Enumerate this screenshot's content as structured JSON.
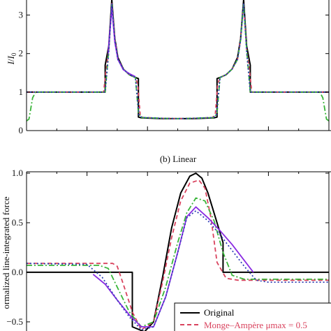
{
  "chart_data": [
    {
      "type": "line",
      "panel": "top",
      "title": "",
      "ylabel_main": "I",
      "ylabel_sub": "0",
      "xlim": [
        0,
        1
      ],
      "ylim": [
        0,
        3.5
      ],
      "yticks": [
        0,
        1,
        2,
        3
      ],
      "ytick_labels": [
        "0",
        "1",
        "2",
        "3"
      ],
      "series": [
        {
          "color": "#000000",
          "dash": "solid",
          "x": [
            0,
            0.26,
            0.26,
            0.272,
            0.282,
            0.292,
            0.302,
            0.32,
            0.34,
            0.36,
            0.37,
            0.37,
            0.38,
            0.45,
            0.5,
            0.55,
            0.62,
            0.63,
            0.63,
            0.64,
            0.66,
            0.68,
            0.698,
            0.708,
            0.718,
            0.728,
            0.74,
            0.74,
            1.0
          ],
          "y": [
            1.0,
            1.0,
            1.7,
            2.2,
            3.4,
            2.4,
            1.9,
            1.6,
            1.45,
            1.38,
            1.35,
            0.35,
            0.33,
            0.31,
            0.31,
            0.31,
            0.33,
            0.35,
            1.35,
            1.38,
            1.45,
            1.6,
            1.9,
            2.4,
            3.4,
            2.2,
            1.7,
            1.0,
            1.0
          ]
        },
        {
          "color": "#d9435e",
          "dash": "5,4",
          "x": [
            0,
            0.255,
            0.262,
            0.272,
            0.282,
            0.292,
            0.302,
            0.32,
            0.34,
            0.36,
            0.368,
            0.376,
            0.386,
            0.45,
            0.5,
            0.55,
            0.614,
            0.624,
            0.632,
            0.64,
            0.66,
            0.68,
            0.698,
            0.708,
            0.718,
            0.728,
            0.738,
            0.745,
            1.0
          ],
          "y": [
            1.0,
            1.0,
            1.5,
            2.1,
            3.3,
            2.4,
            1.85,
            1.6,
            1.45,
            1.38,
            1.2,
            0.4,
            0.34,
            0.32,
            0.31,
            0.32,
            0.34,
            0.4,
            1.2,
            1.38,
            1.45,
            1.6,
            1.85,
            2.4,
            3.3,
            2.1,
            1.5,
            1.0,
            1.0
          ]
        },
        {
          "color": "#3ab53a",
          "dash": "8,3,2,3",
          "x": [
            0,
            0.008,
            0.02,
            0.03,
            0.26,
            0.272,
            0.282,
            0.292,
            0.302,
            0.32,
            0.34,
            0.36,
            0.37,
            0.38,
            0.45,
            0.5,
            0.55,
            0.62,
            0.63,
            0.64,
            0.66,
            0.68,
            0.698,
            0.708,
            0.718,
            0.728,
            0.74,
            0.97,
            0.98,
            0.992,
            1.0
          ],
          "y": [
            0.25,
            0.3,
            0.85,
            1.0,
            1.0,
            2.1,
            3.3,
            2.35,
            1.85,
            1.6,
            1.45,
            1.38,
            0.45,
            0.34,
            0.32,
            0.31,
            0.32,
            0.34,
            0.45,
            1.38,
            1.45,
            1.6,
            1.85,
            2.35,
            3.3,
            2.1,
            1.0,
            1.0,
            0.85,
            0.3,
            0.25
          ]
        },
        {
          "color": "#8a2be2",
          "dash": "solid",
          "x": [
            0.27,
            0.282,
            0.292,
            0.302,
            0.32,
            0.34,
            0.36
          ],
          "y": [
            2.0,
            3.2,
            2.3,
            1.85,
            1.58,
            1.48,
            1.4
          ]
        },
        {
          "color": "#2d3fb5",
          "dash": "2,3",
          "x": [
            0,
            0.26,
            0.272,
            0.282,
            0.292,
            0.302,
            0.32,
            0.34,
            0.36,
            0.372,
            0.382,
            0.45,
            0.5,
            0.55,
            0.618,
            0.628,
            0.64,
            0.66,
            0.68,
            0.698,
            0.708,
            0.718,
            0.728,
            0.74,
            1.0
          ],
          "y": [
            1.0,
            1.0,
            2.05,
            3.3,
            2.35,
            1.85,
            1.6,
            1.45,
            1.38,
            0.4,
            0.34,
            0.32,
            0.31,
            0.32,
            0.34,
            0.4,
            1.38,
            1.45,
            1.6,
            1.85,
            2.35,
            3.3,
            2.05,
            1.0,
            1.0
          ]
        }
      ]
    },
    {
      "type": "line",
      "panel": "bottom",
      "title": "(b) Linear",
      "ylabel": "ormalized line-integrated force",
      "xlim": [
        0,
        1
      ],
      "ylim": [
        -0.55,
        1.0
      ],
      "yticks": [
        -0.5,
        0.0,
        0.5,
        1.0
      ],
      "ytick_labels": [
        "−0.5",
        "0.0",
        "0.5",
        "1.0"
      ],
      "series": [
        {
          "name": "Original",
          "color": "#000000",
          "dash": "solid",
          "x": [
            0,
            0.35,
            0.35,
            0.39,
            0.42,
            0.45,
            0.48,
            0.51,
            0.54,
            0.56,
            0.58,
            0.6,
            0.62,
            0.65,
            0.65,
            1.0
          ],
          "y": [
            0,
            0,
            -0.55,
            -0.6,
            -0.5,
            -0.05,
            0.45,
            0.8,
            0.97,
            1.0,
            0.95,
            0.8,
            0.6,
            0.3,
            0.0,
            0.0
          ]
        },
        {
          "name": "Monge–Ampère μmax = 0.5",
          "color": "#d9435e",
          "dash": "6,4",
          "x": [
            0,
            0.285,
            0.3,
            0.32,
            0.35,
            0.38,
            0.42,
            0.45,
            0.48,
            0.51,
            0.54,
            0.57,
            0.59,
            0.61,
            0.63,
            0.66,
            0.7,
            1.0
          ],
          "y": [
            0.09,
            0.09,
            0.06,
            -0.12,
            -0.4,
            -0.58,
            -0.5,
            -0.1,
            0.35,
            0.72,
            0.9,
            0.93,
            0.85,
            0.55,
            0.1,
            -0.06,
            -0.08,
            -0.08
          ]
        },
        {
          "color": "#3ab53a",
          "dash": "8,3,2,3",
          "x": [
            0,
            0.24,
            0.27,
            0.3,
            0.34,
            0.38,
            0.42,
            0.46,
            0.5,
            0.53,
            0.56,
            0.59,
            0.62,
            0.65,
            0.68,
            0.72,
            1.0
          ],
          "y": [
            0.07,
            0.07,
            0.04,
            -0.15,
            -0.4,
            -0.55,
            -0.5,
            -0.15,
            0.3,
            0.6,
            0.75,
            0.72,
            0.52,
            0.2,
            -0.03,
            -0.07,
            -0.07
          ]
        },
        {
          "color": "#8a2be2",
          "dash": "solid",
          "x": [
            0.22,
            0.26,
            0.3,
            0.34,
            0.38,
            0.42,
            0.46,
            0.5,
            0.53,
            0.56,
            0.6,
            0.64,
            0.68,
            0.72,
            0.75
          ],
          "y": [
            -0.02,
            -0.12,
            -0.28,
            -0.43,
            -0.55,
            -0.55,
            -0.25,
            0.2,
            0.56,
            0.66,
            0.55,
            0.42,
            0.28,
            0.12,
            0.0
          ]
        },
        {
          "color": "#2d3fb5",
          "dash": "2,3",
          "x": [
            0,
            0.2,
            0.25,
            0.3,
            0.34,
            0.38,
            0.42,
            0.46,
            0.5,
            0.53,
            0.56,
            0.6,
            0.64,
            0.68,
            0.72,
            0.76,
            0.8,
            1.0
          ],
          "y": [
            0.09,
            0.08,
            -0.05,
            -0.28,
            -0.45,
            -0.58,
            -0.55,
            -0.25,
            0.2,
            0.55,
            0.62,
            0.52,
            0.38,
            0.22,
            0.06,
            -0.08,
            -0.1,
            -0.1
          ]
        }
      ],
      "legend_position": "bottom-right"
    }
  ]
}
